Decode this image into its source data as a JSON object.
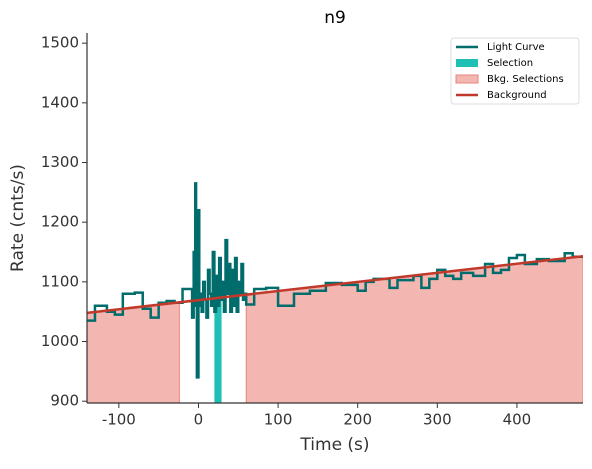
{
  "chart_data": {
    "type": "step",
    "title": "n9",
    "xlabel": "Time (s)",
    "ylabel": "Rate (cnts/s)",
    "xlim": [
      -140,
      483
    ],
    "ylim": [
      897,
      1517
    ],
    "xticks": [
      -100,
      0,
      100,
      200,
      300,
      400
    ],
    "yticks": [
      900,
      1000,
      1100,
      1200,
      1300,
      1400,
      1500
    ],
    "legend": "upper right",
    "series": [
      {
        "name": "Light Curve",
        "color": "#006d6c",
        "x": [
          -140,
          -130,
          -115,
          -105,
          -95,
          -80,
          -70,
          -60,
          -50,
          -40,
          -30,
          -20,
          -8,
          -6,
          -4,
          -3,
          -2,
          0,
          1,
          2,
          4,
          6,
          8,
          10,
          12,
          14,
          16,
          18,
          20,
          22,
          24,
          26,
          28,
          30,
          32,
          34,
          36,
          38,
          40,
          42,
          44,
          46,
          48,
          50,
          52,
          54,
          56,
          58,
          60,
          70,
          85,
          100,
          120,
          140,
          160,
          180,
          200,
          210,
          220,
          240,
          250,
          270,
          280,
          290,
          300,
          310,
          320,
          330,
          345,
          360,
          370,
          380,
          390,
          400,
          410,
          425,
          440,
          460,
          470
        ],
        "values": [
          1035,
          1060,
          1050,
          1045,
          1080,
          1082,
          1055,
          1040,
          1065,
          1068,
          1065,
          1088,
          1040,
          1150,
          1265,
          1060,
          940,
          1220,
          1060,
          1080,
          1050,
          1100,
          1070,
          1040,
          1120,
          1080,
          1060,
          1150,
          1050,
          1110,
          1060,
          1140,
          1070,
          1100,
          1050,
          1170,
          1080,
          1130,
          1050,
          1120,
          1060,
          1140,
          1050,
          1100,
          1080,
          1130,
          1070,
          1080,
          1062,
          1088,
          1090,
          1060,
          1080,
          1085,
          1098,
          1095,
          1085,
          1100,
          1105,
          1090,
          1103,
          1110,
          1090,
          1105,
          1120,
          1110,
          1105,
          1115,
          1110,
          1130,
          1115,
          1120,
          1140,
          1145,
          1130,
          1138,
          1135,
          1148,
          1142
        ]
      },
      {
        "name": "Selection",
        "color": "#1fbfb6",
        "ranges": [
          [
            20,
            29
          ]
        ]
      },
      {
        "name": "Bkg. Selections",
        "color": "#f4b6b0",
        "ranges": [
          [
            -140,
            -24
          ],
          [
            60,
            483
          ]
        ]
      },
      {
        "name": "Background",
        "color": "#c0392b",
        "x": [
          -140,
          483
        ],
        "values": [
          1048,
          1143
        ]
      }
    ]
  }
}
